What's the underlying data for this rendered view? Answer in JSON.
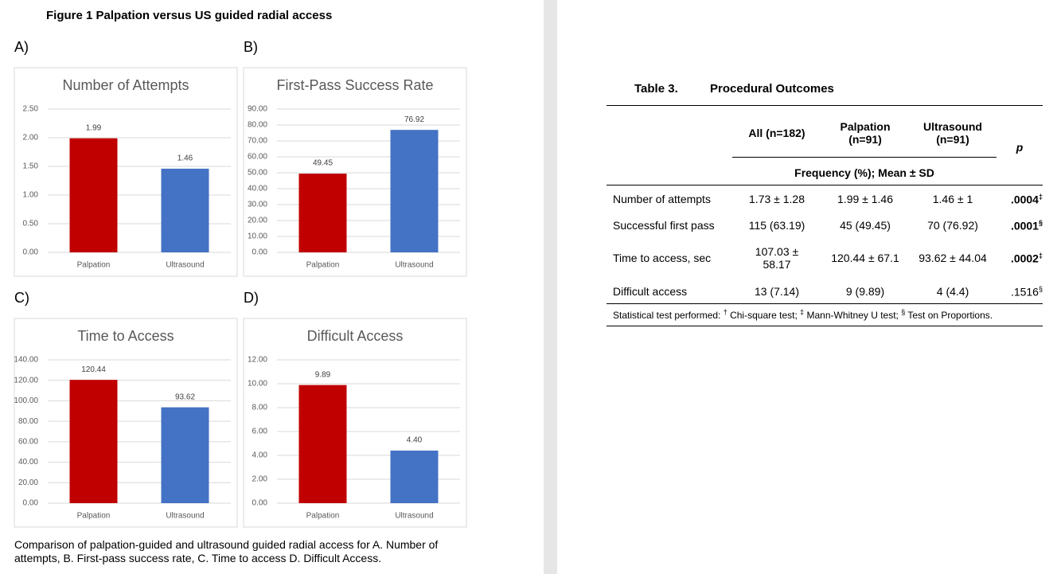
{
  "figure_title": "Figure 1 Palpation versus US guided radial access",
  "chart_data": [
    {
      "type": "bar",
      "panel": "A)",
      "title": "Number of Attempts",
      "categories": [
        "Palpation",
        "Ultrasound"
      ],
      "values": [
        1.99,
        1.46
      ],
      "colors": [
        "#c00000",
        "#4472c4"
      ],
      "ylim": [
        0,
        2.5
      ],
      "yticks": [
        {
          "value": 0,
          "label": "0.00"
        },
        {
          "value": 0.5,
          "label": "0.50"
        },
        {
          "value": 1,
          "label": "1.00"
        },
        {
          "value": 1.5,
          "label": "1.50"
        },
        {
          "value": 2,
          "label": "2.00"
        },
        {
          "value": 2.5,
          "label": "2.50"
        }
      ],
      "grid": true
    },
    {
      "type": "bar",
      "panel": "B)",
      "title": "First-Pass Success Rate",
      "categories": [
        "Palpation",
        "Ultrasound"
      ],
      "values": [
        49.45,
        76.92
      ],
      "colors": [
        "#c00000",
        "#4472c4"
      ],
      "ylim": [
        0,
        90
      ],
      "yticks": [
        {
          "value": 0,
          "label": "0.00"
        },
        {
          "value": 10,
          "label": "10.00"
        },
        {
          "value": 20,
          "label": "20.00"
        },
        {
          "value": 30,
          "label": "30.00"
        },
        {
          "value": 40,
          "label": "40.00"
        },
        {
          "value": 50,
          "label": "50.00"
        },
        {
          "value": 60,
          "label": "60.00"
        },
        {
          "value": 70,
          "label": "70.00"
        },
        {
          "value": 80,
          "label": "80.00"
        },
        {
          "value": 90,
          "label": "90.00"
        }
      ],
      "grid": true
    },
    {
      "type": "bar",
      "panel": "C)",
      "title": "Time to Access",
      "categories": [
        "Palpation",
        "Ultrasound"
      ],
      "values": [
        120.44,
        93.62
      ],
      "colors": [
        "#c00000",
        "#4472c4"
      ],
      "ylim": [
        0,
        140
      ],
      "yticks": [
        {
          "value": 0,
          "label": "0.00"
        },
        {
          "value": 20,
          "label": "20.00"
        },
        {
          "value": 40,
          "label": "40.00"
        },
        {
          "value": 60,
          "label": "60.00"
        },
        {
          "value": 80,
          "label": "80.00"
        },
        {
          "value": 100,
          "label": "100.00"
        },
        {
          "value": 120,
          "label": "120.00"
        },
        {
          "value": 140,
          "label": "140.00"
        }
      ],
      "grid": true
    },
    {
      "type": "bar",
      "panel": "D)",
      "title": "Difficult Access",
      "categories": [
        "Palpation",
        "Ultrasound"
      ],
      "values": [
        9.89,
        4.4
      ],
      "value_labels": [
        "9.89",
        "4.40"
      ],
      "colors": [
        "#c00000",
        "#4472c4"
      ],
      "ylim": [
        0,
        12
      ],
      "yticks": [
        {
          "value": 0,
          "label": "0.00"
        },
        {
          "value": 2,
          "label": "2.00"
        },
        {
          "value": 4,
          "label": "4.00"
        },
        {
          "value": 6,
          "label": "6.00"
        },
        {
          "value": 8,
          "label": "8.00"
        },
        {
          "value": 10,
          "label": "10.00"
        },
        {
          "value": 12,
          "label": "12.00"
        }
      ],
      "grid": true
    }
  ],
  "caption": "Comparison of palpation-guided and ultrasound guided radial access for A. Number of attempts, B. First-pass success rate, C. Time to access D. Difficult Access.",
  "table": {
    "number": "Table 3.",
    "title": "Procedural Outcomes",
    "headers": [
      "All (n=182)",
      "Palpation (n=91)",
      "Ultrasound (n=91)",
      "p"
    ],
    "subheader": "Frequency (%); Mean ± SD",
    "rows": [
      {
        "label": "Number of attempts",
        "cells": [
          "1.73 ± 1.28",
          "1.99 ± 1.46",
          "1.46 ± 1"
        ],
        "p": {
          "value": ".0004",
          "mark": "‡",
          "bold": true
        }
      },
      {
        "label": "Successful first pass",
        "cells": [
          "115 (63.19)",
          "45 (49.45)",
          "70 (76.92)"
        ],
        "p": {
          "value": ".0001",
          "mark": "§",
          "bold": true
        }
      },
      {
        "label": "Time to access, sec",
        "cells": [
          "107.03 ± 58.17",
          "120.44 ± 67.1",
          "93.62 ± 44.04"
        ],
        "p": {
          "value": ".0002",
          "mark": "‡",
          "bold": true
        }
      },
      {
        "label": "Difficult access",
        "cells": [
          "13 (7.14)",
          "9 (9.89)",
          "4 (4.4)"
        ],
        "p": {
          "value": ".1516",
          "mark": "§",
          "bold": false
        }
      }
    ],
    "footnote": {
      "lead": "Statistical test performed:",
      "notes": [
        {
          "mark": "†",
          "text": "Chi-square test;"
        },
        {
          "mark": "‡",
          "text": "Mann-Whitney U test;"
        },
        {
          "mark": "§",
          "text": "Test on Proportions."
        }
      ]
    }
  }
}
